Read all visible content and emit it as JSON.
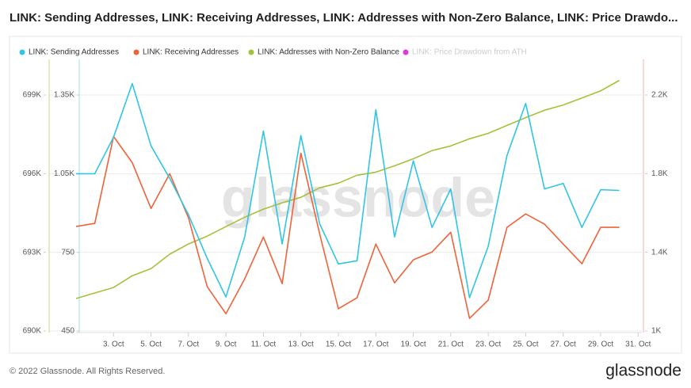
{
  "chart_data": {
    "type": "line",
    "title": "LINK: Sending Addresses, LINK: Receiving Addresses, LINK: Addresses with Non-Zero Balance, LINK: Price Drawdo...",
    "x": [
      1,
      2,
      3,
      4,
      5,
      6,
      7,
      8,
      9,
      10,
      11,
      12,
      13,
      14,
      15,
      16,
      17,
      18,
      19,
      20,
      21,
      22,
      23,
      24,
      25,
      26,
      27,
      28,
      29,
      30
    ],
    "xlim": [
      1,
      31.2
    ],
    "xticks": [
      {
        "value": 3,
        "label": "3. Oct"
      },
      {
        "value": 5,
        "label": "5. Oct"
      },
      {
        "value": 7,
        "label": "7. Oct"
      },
      {
        "value": 9,
        "label": "9. Oct"
      },
      {
        "value": 11,
        "label": "11. Oct"
      },
      {
        "value": 13,
        "label": "13. Oct"
      },
      {
        "value": 15,
        "label": "15. Oct"
      },
      {
        "value": 17,
        "label": "17. Oct"
      },
      {
        "value": 19,
        "label": "19. Oct"
      },
      {
        "value": 21,
        "label": "21. Oct"
      },
      {
        "value": 23,
        "label": "23. Oct"
      },
      {
        "value": 25,
        "label": "25. Oct"
      },
      {
        "value": 27,
        "label": "27. Oct"
      },
      {
        "value": 29,
        "label": "29. Oct"
      },
      {
        "value": 31,
        "label": "31. Oct"
      }
    ],
    "ylim": [
      444,
      1486
    ],
    "yticks": [
      450,
      750,
      {
        "value": 1050,
        "label": "1.05K"
      },
      {
        "value": 1350,
        "label": "1.35K"
      }
    ],
    "y2lim": [
      992,
      2381
    ],
    "y2ticks": [
      {
        "value": 1000,
        "label": "1K"
      },
      {
        "value": 1400,
        "label": "1.4K"
      },
      {
        "value": 1800,
        "label": "1.8K"
      },
      {
        "value": 2200,
        "label": "2.2K"
      }
    ],
    "y3lim": [
      689940,
      700360
    ],
    "y3ticks": [
      {
        "value": 690000,
        "label": "690K"
      },
      {
        "value": 693000,
        "label": "693K"
      },
      {
        "value": 696000,
        "label": "696K"
      },
      {
        "value": 699000,
        "label": "699K"
      }
    ],
    "grid": true,
    "series": [
      {
        "name": "LINK: Sending Addresses",
        "color": "#30c4e6",
        "axis": "y",
        "values": [
          1050,
          1050,
          1189,
          1394,
          1156,
          1032,
          893,
          727,
          580,
          809,
          1213,
          782,
          1195,
          859,
          706,
          718,
          1294,
          809,
          1099,
          845,
          992,
          577,
          773,
          1120,
          1318,
          992,
          1013,
          845,
          989,
          986
        ]
      },
      {
        "name": "LINK: Receiving Addresses",
        "color": "#f0623a",
        "axis": "y2",
        "values": [
          1531,
          1547,
          1989,
          1856,
          1623,
          1800,
          1575,
          1225,
          1088,
          1265,
          1478,
          1241,
          1904,
          1494,
          1113,
          1169,
          1442,
          1245,
          1362,
          1402,
          1502,
          1064,
          1157,
          1527,
          1595,
          1543,
          1442,
          1342,
          1527,
          1527
        ]
      },
      {
        "name": "LINK: Addresses with Non-Zero Balance",
        "color": "#a3c23a",
        "axis": "y3",
        "values": [
          691240,
          691450,
          691660,
          692110,
          692380,
          692930,
          693320,
          693620,
          693980,
          694340,
          694650,
          694890,
          695100,
          695460,
          695640,
          695940,
          696060,
          696300,
          696570,
          696880,
          697060,
          697330,
          697540,
          697840,
          698140,
          698420,
          698620,
          698890,
          699160,
          699560
        ]
      }
    ],
    "hidden_series": [
      {
        "name": "LINK: Price Drawdown from ATH",
        "color": "#e23ad6"
      }
    ]
  },
  "footer": {
    "copyright": "© 2022 Glassnode. All Rights Reserved.",
    "logo": "glassnode",
    "watermark": "glassnode"
  }
}
